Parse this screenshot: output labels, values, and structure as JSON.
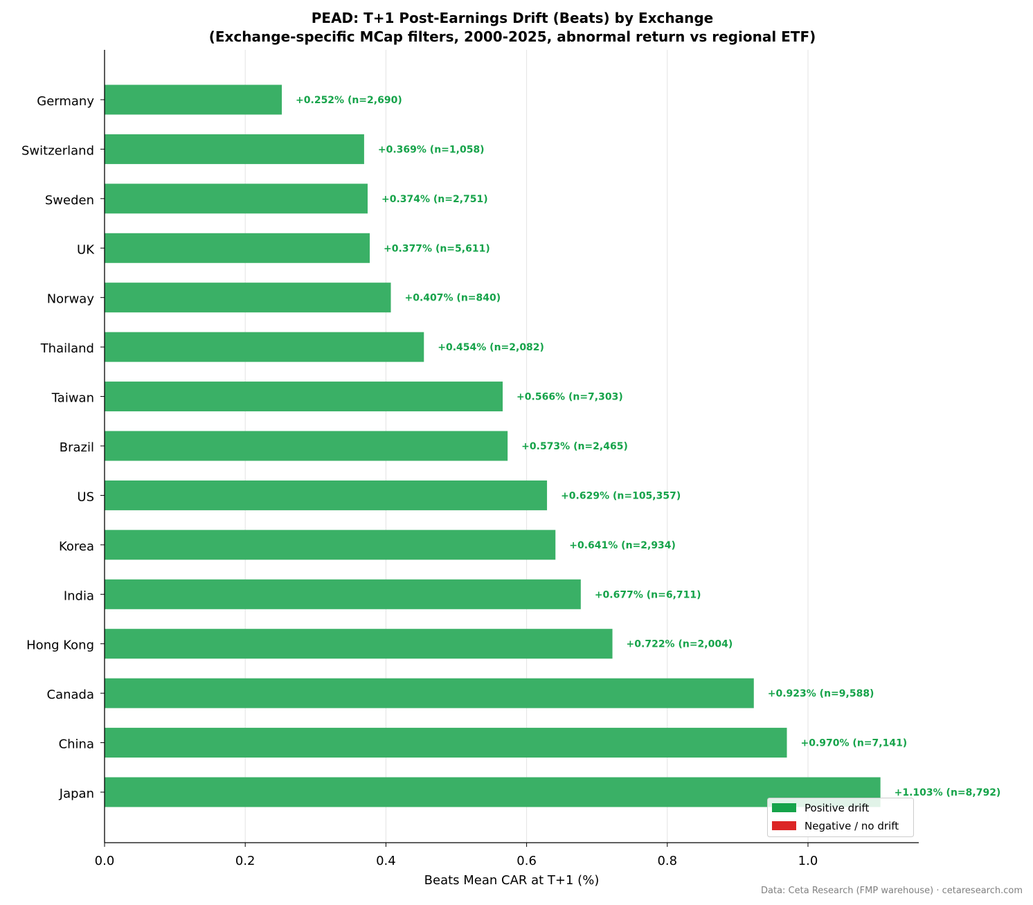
{
  "chart_data": {
    "type": "bar",
    "orientation": "horizontal",
    "title": "PEAD: T+1 Post-Earnings Drift (Beats) by Exchange",
    "subtitle": "(Exchange-specific MCap filters, 2000-2025, abnormal return vs regional ETF)",
    "xlabel": "Beats Mean CAR at T+1 (%)",
    "ylabel": "",
    "xlim": [
      0,
      1.158
    ],
    "xticks": [
      "0.0",
      "0.2",
      "0.4",
      "0.6",
      "0.8",
      "1.0"
    ],
    "grid": "vertical",
    "categories": [
      "Japan",
      "China",
      "Canada",
      "Hong Kong",
      "India",
      "Korea",
      "US",
      "Brazil",
      "Taiwan",
      "Thailand",
      "Norway",
      "UK",
      "Sweden",
      "Switzerland",
      "Germany"
    ],
    "values": [
      1.103,
      0.97,
      0.923,
      0.722,
      0.677,
      0.641,
      0.629,
      0.573,
      0.566,
      0.454,
      0.407,
      0.377,
      0.374,
      0.369,
      0.252
    ],
    "data_labels": [
      "+1.103%  (n=8,792)",
      "+0.970%  (n=7,141)",
      "+0.923%  (n=9,588)",
      "+0.722%  (n=2,004)",
      "+0.677%  (n=6,711)",
      "+0.641%  (n=2,934)",
      "+0.629%  (n=105,357)",
      "+0.573%  (n=2,465)",
      "+0.566%  (n=7,303)",
      "+0.454%  (n=2,082)",
      "+0.407%  (n=840)",
      "+0.377%  (n=5,611)",
      "+0.374%  (n=2,751)",
      "+0.369%  (n=1,058)",
      "+0.252%  (n=2,690)"
    ],
    "legend": {
      "placement": "lower-right",
      "entries": [
        {
          "label": "Positive drift",
          "color": "#16a34a"
        },
        {
          "label": "Negative / no drift",
          "color": "#dc2626"
        }
      ]
    },
    "colors": {
      "positive": "#16a34a",
      "bar_fill": "#3ab066",
      "negative": "#dc2626"
    }
  },
  "footer": {
    "source": "Data: Ceta Research (FMP warehouse) · cetaresearch.com"
  }
}
